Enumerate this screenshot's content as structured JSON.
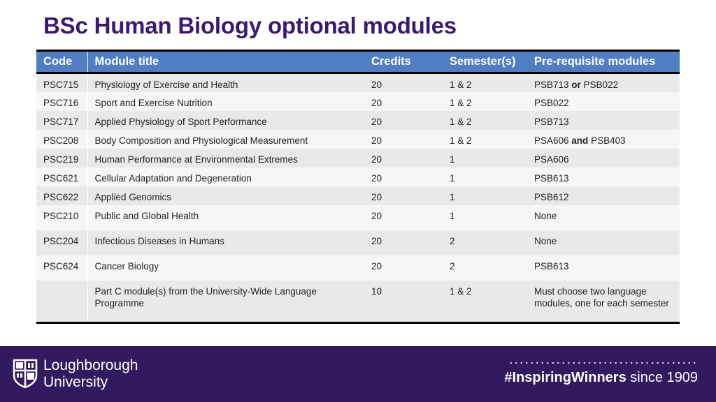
{
  "page": {
    "title": "BSc Human Biology optional modules"
  },
  "table": {
    "headers": [
      "Code",
      "Module title",
      "Credits",
      "Semester(s)",
      "Pre-requisite modules"
    ],
    "rows": [
      {
        "code": "PSC715",
        "title": "Physiology of Exercise and Health",
        "credits": "20",
        "semester": "1 & 2",
        "prereq": [
          {
            "t": "PSB713 ",
            "b": false
          },
          {
            "t": "or",
            "b": true
          },
          {
            "t": " PSB022",
            "b": false
          }
        ]
      },
      {
        "code": "PSC716",
        "title": "Sport and Exercise Nutrition",
        "credits": "20",
        "semester": "1 & 2",
        "prereq": [
          {
            "t": "PSB022",
            "b": false
          }
        ]
      },
      {
        "code": "PSC717",
        "title": "Applied Physiology of Sport Performance",
        "credits": "20",
        "semester": "1 & 2",
        "prereq": [
          {
            "t": "PSB713",
            "b": false
          }
        ]
      },
      {
        "code": "PSC208",
        "title": "Body Composition and Physiological Measurement",
        "credits": "20",
        "semester": "1 & 2",
        "prereq": [
          {
            "t": "PSA606 ",
            "b": false
          },
          {
            "t": "and",
            "b": true
          },
          {
            "t": " PSB403",
            "b": false
          }
        ]
      },
      {
        "code": "PSC219",
        "title": "Human Performance at Environmental Extremes",
        "credits": "20",
        "semester": "1",
        "prereq": [
          {
            "t": "PSA606",
            "b": false
          }
        ]
      },
      {
        "code": "PSC621",
        "title": "Cellular Adaptation and Degeneration",
        "credits": "20",
        "semester": "1",
        "prereq": [
          {
            "t": "PSB613",
            "b": false
          }
        ]
      },
      {
        "code": "PSC622",
        "title": "Applied Genomics",
        "credits": "20",
        "semester": "1",
        "prereq": [
          {
            "t": "PSB612",
            "b": false
          }
        ]
      },
      {
        "code": "PSC210",
        "title": "Public and Global Health",
        "credits": "20",
        "semester": "1",
        "prereq": [
          {
            "t": "None",
            "b": false
          }
        ]
      },
      {
        "code": "PSC204",
        "title": "Infectious Diseases in Humans",
        "credits": "20",
        "semester": "2",
        "prereq": [
          {
            "t": "None",
            "b": false
          }
        ]
      },
      {
        "code": "PSC624",
        "title": "Cancer Biology",
        "credits": "20",
        "semester": "2",
        "prereq": [
          {
            "t": "PSB613",
            "b": false
          }
        ]
      },
      {
        "code": "",
        "title": "Part C module(s) from the University-Wide Language Programme",
        "credits": "10",
        "semester": "1 & 2",
        "prereq": [
          {
            "t": "Must choose two language modules, one for each semester",
            "b": false
          }
        ]
      }
    ]
  },
  "footer": {
    "logo_icon": "loughborough-crest-icon",
    "university_line1": "Loughborough",
    "university_line2": "University",
    "hashtag": "#InspiringWinners",
    "since": " since 1909"
  },
  "colors": {
    "title": "#3a1a6e",
    "header_bg": "#4f7fc2",
    "footer_bg": "#331a60"
  }
}
